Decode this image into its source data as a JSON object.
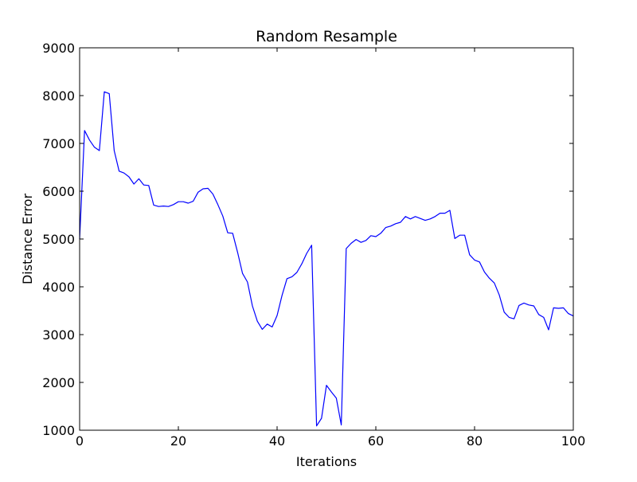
{
  "chart_data": {
    "type": "line",
    "title": "Random Resample",
    "xlabel": "Iterations",
    "ylabel": "Distance Error",
    "xlim": [
      0,
      100
    ],
    "ylim": [
      1000,
      9000
    ],
    "xticks": [
      0,
      20,
      40,
      60,
      80,
      100
    ],
    "yticks": [
      1000,
      2000,
      3000,
      4000,
      5000,
      6000,
      7000,
      8000,
      9000
    ],
    "grid": false,
    "legend": "none",
    "series": [
      {
        "color": "#0000ff",
        "x": [
          0,
          1,
          2,
          3,
          4,
          5,
          6,
          7,
          8,
          9,
          10,
          11,
          12,
          13,
          14,
          15,
          16,
          17,
          18,
          19,
          20,
          21,
          22,
          23,
          24,
          25,
          26,
          27,
          28,
          29,
          30,
          31,
          32,
          33,
          34,
          35,
          36,
          37,
          38,
          39,
          40,
          41,
          42,
          43,
          44,
          45,
          46,
          47,
          48,
          49,
          50,
          51,
          52,
          53,
          54,
          55,
          56,
          57,
          58,
          59,
          60,
          61,
          62,
          63,
          64,
          65,
          66,
          67,
          68,
          69,
          70,
          71,
          72,
          73,
          74,
          75,
          76,
          77,
          78,
          79,
          80,
          81,
          82,
          83,
          84,
          85,
          86,
          87,
          88,
          89,
          90,
          91,
          92,
          93,
          94,
          95,
          96,
          97,
          98,
          99,
          100
        ],
        "y": [
          5000,
          7270,
          7070,
          6920,
          6850,
          8080,
          8040,
          6850,
          6420,
          6380,
          6300,
          6150,
          6260,
          6130,
          6120,
          5710,
          5680,
          5690,
          5680,
          5720,
          5780,
          5780,
          5750,
          5790,
          5980,
          6050,
          6060,
          5940,
          5720,
          5480,
          5130,
          5120,
          4720,
          4280,
          4100,
          3600,
          3280,
          3110,
          3220,
          3160,
          3400,
          3820,
          4170,
          4210,
          4300,
          4480,
          4700,
          4870,
          1090,
          1250,
          1940,
          1800,
          1670,
          1110,
          4800,
          4910,
          4990,
          4930,
          4970,
          5070,
          5050,
          5120,
          5240,
          5270,
          5320,
          5350,
          5470,
          5420,
          5470,
          5430,
          5390,
          5420,
          5470,
          5540,
          5540,
          5600,
          5010,
          5080,
          5080,
          4670,
          4560,
          4520,
          4310,
          4180,
          4080,
          3830,
          3470,
          3360,
          3330,
          3610,
          3660,
          3620,
          3600,
          3420,
          3360,
          3100,
          3560,
          3550,
          3560,
          3440,
          3390
        ]
      }
    ]
  }
}
